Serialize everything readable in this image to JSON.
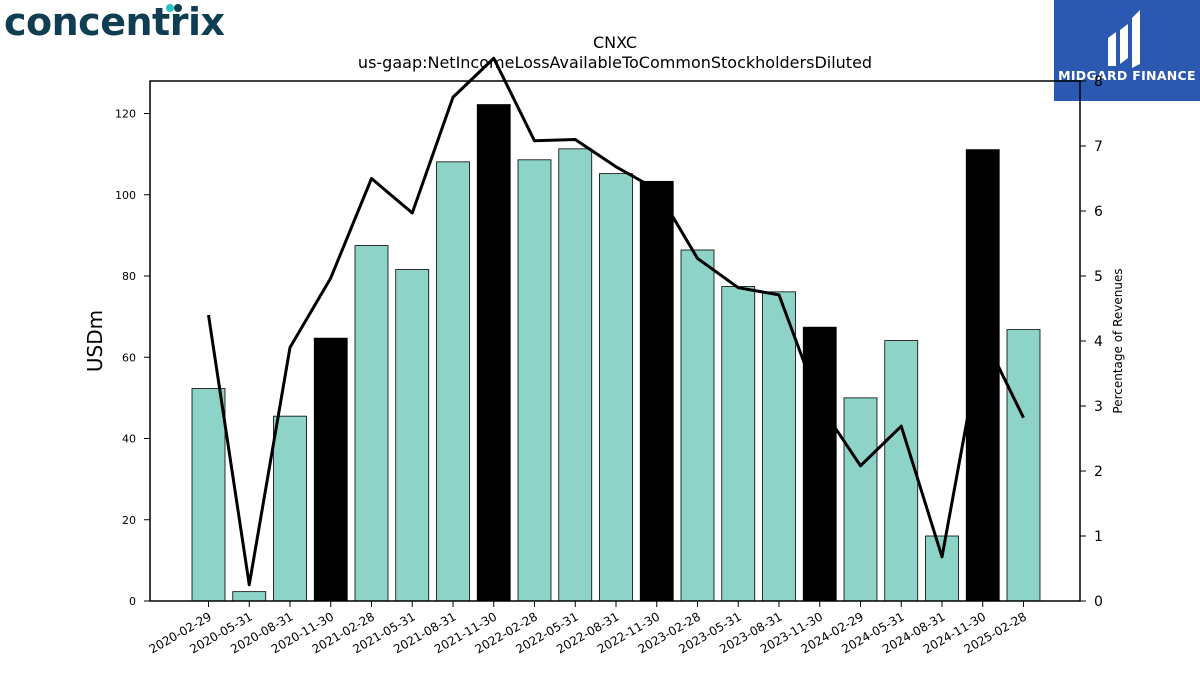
{
  "logos": {
    "left_text": "concentrix",
    "right_text": "MIDGARD FINANCE",
    "accent_teal": "#2ec4c4",
    "accent_navy": "#0f3d52",
    "right_bg": "#2b58b0"
  },
  "chart_data": {
    "type": "bar",
    "title": "CNXC",
    "subtitle": "us-gaap:NetIncomeLossAvailableToCommonStockholdersDiluted",
    "ylabel": "USDm",
    "y2label": "Percentage of Revenues",
    "ylim": [
      0,
      128
    ],
    "y2lim": [
      0,
      8.0
    ],
    "yticks": [
      0,
      20,
      40,
      60,
      80,
      100,
      120
    ],
    "y2ticks": [
      0,
      1,
      2,
      3,
      4,
      5,
      6,
      7,
      8
    ],
    "categories": [
      "2020-02-29",
      "2020-05-31",
      "2020-08-31",
      "2020-11-30",
      "2021-02-28",
      "2021-05-31",
      "2021-08-31",
      "2021-11-30",
      "2022-02-28",
      "2022-05-31",
      "2022-08-31",
      "2022-11-30",
      "2023-02-28",
      "2023-05-31",
      "2023-08-31",
      "2023-11-30",
      "2024-02-29",
      "2024-05-31",
      "2024-08-31",
      "2024-11-30",
      "2025-02-28"
    ],
    "series": [
      {
        "values": [
          52.3,
          2.3,
          45.5,
          64.7,
          87.5,
          81.6,
          108.1,
          122.2,
          108.6,
          111.3,
          105.2,
          103.3,
          86.4,
          77.4,
          76.1,
          67.4,
          50.0,
          64.1,
          16.0,
          111.1,
          66.8
        ],
        "highlight": [
          false,
          false,
          false,
          true,
          false,
          false,
          false,
          true,
          false,
          false,
          false,
          true,
          false,
          false,
          false,
          true,
          false,
          false,
          false,
          true,
          false
        ],
        "color": "#8dd3c7",
        "highlight_color": "#000000"
      },
      {
        "axis": "right",
        "type": "line",
        "values": [
          4.4,
          0.25,
          3.9,
          4.97,
          6.5,
          5.97,
          7.75,
          8.35,
          7.08,
          7.1,
          6.68,
          6.33,
          5.27,
          4.82,
          4.71,
          3.02,
          2.08,
          2.69,
          0.68,
          4.1,
          2.82
        ],
        "color": "#000000"
      }
    ],
    "grid": false,
    "legend": "none"
  }
}
